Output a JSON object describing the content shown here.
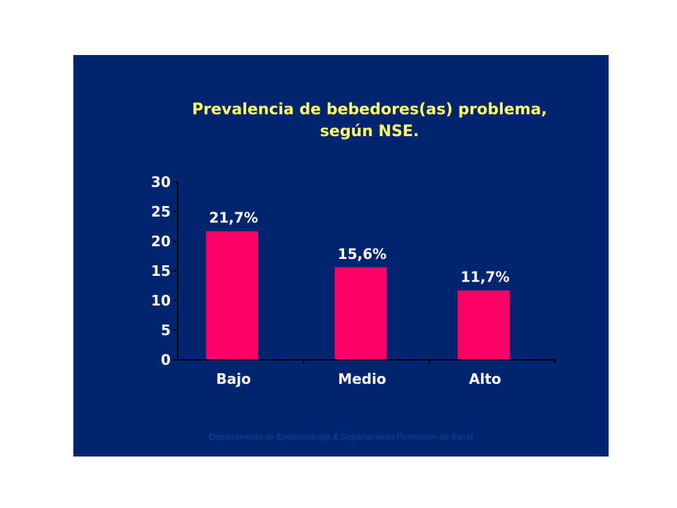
{
  "chart_data": {
    "type": "bar",
    "title_lines": [
      "Prevalencia de bebedores(as) problema,",
      "según NSE."
    ],
    "categories": [
      "Bajo",
      "Medio",
      "Alto"
    ],
    "values": [
      21.7,
      15.6,
      11.7
    ],
    "data_labels": [
      "21,7%",
      "15,6%",
      "11,7%"
    ],
    "yticks": [
      0,
      5,
      10,
      15,
      20,
      25,
      30
    ],
    "ylim": [
      0,
      30
    ],
    "grid": false,
    "legend": "none"
  },
  "colors": {
    "background": "#002570",
    "bar": "#ff0066",
    "title": "#ffff66",
    "text": "#ffffff",
    "axis": "#000000",
    "footer": "#1f3fa0"
  },
  "footer_text": "Departamento de Epidemiología & Departamento Promoción de Salud"
}
